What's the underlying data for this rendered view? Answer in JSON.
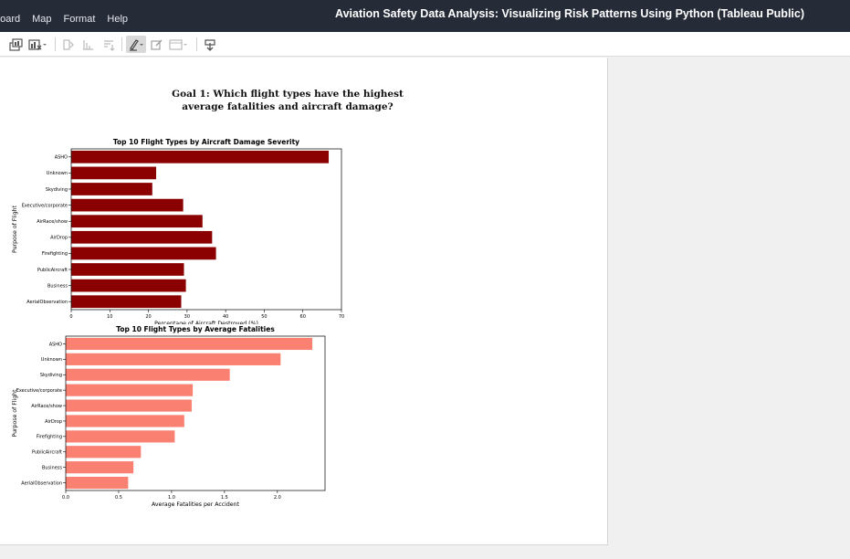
{
  "app": {
    "title": "Aviation Safety Data Analysis: Visualizing Risk Patterns Using Python (Tableau Public)",
    "menu": [
      "board",
      "Map",
      "Format",
      "Help"
    ]
  },
  "toolbar": {
    "icons": [
      "duplicate-sheet-icon",
      "clear-sheet-icon",
      "undo-icon",
      "redo-icon",
      "sort-icon",
      "highlight-icon",
      "annotate-icon",
      "fit-icon",
      "download-icon"
    ]
  },
  "story": {
    "title": "Goal 1: Which flight types have the highest average fatalities and aircraft damage?"
  },
  "chart_data": [
    {
      "type": "bar",
      "orientation": "horizontal",
      "title": "Top 10 Flight Types by Aircraft Damage Severity",
      "xlabel": "Percentage of Aircraft Destroyed (%)",
      "ylabel": "Purpose of Flight",
      "categories": [
        "ASHO",
        "Unknown",
        "Skydiving",
        "Executive/corporate",
        "AirRace/show",
        "AirDrop",
        "Firefighting",
        "PublicAircraft",
        "Business",
        "AerialObservation"
      ],
      "values": [
        66.7,
        22.0,
        21.0,
        29.0,
        34.0,
        36.5,
        37.5,
        29.2,
        29.7,
        28.5
      ],
      "xlim": [
        0,
        70
      ],
      "xticks": [
        "0",
        "10",
        "20",
        "30",
        "40",
        "50",
        "60",
        "70"
      ],
      "color": "#8b0000",
      "grid": false
    },
    {
      "type": "bar",
      "orientation": "horizontal",
      "title": "Top 10 Flight Types by Average Fatalities",
      "xlabel": "Average Fatalities per Accident",
      "ylabel": "Purpose of Flight",
      "categories": [
        "ASHO",
        "Unknown",
        "Skydiving",
        "Executive/corporate",
        "AirRace/show",
        "AirDrop",
        "Firefighting",
        "PublicAircraft",
        "Business",
        "AerialObservation"
      ],
      "values": [
        2.33,
        2.03,
        1.55,
        1.2,
        1.19,
        1.12,
        1.03,
        0.71,
        0.64,
        0.59
      ],
      "xlim": [
        0,
        2.45
      ],
      "xticks": [
        "0.0",
        "0.5",
        "1.0",
        "1.5",
        "2.0"
      ],
      "xtick_values": [
        0,
        0.5,
        1.0,
        1.5,
        2.0
      ],
      "color": "#fa8072",
      "grid": false
    }
  ]
}
